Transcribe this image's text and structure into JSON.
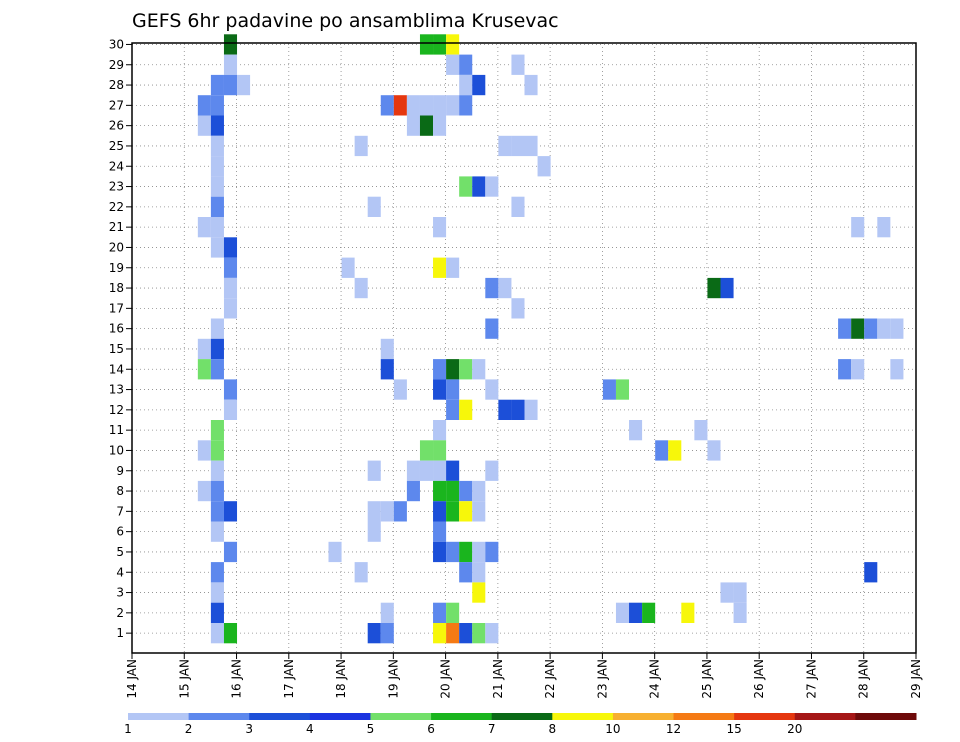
{
  "chart_data": {
    "type": "heatmap",
    "title": "GEFS 6hr padavine po ansamblima Krusevac",
    "xlabel": "",
    "ylabel": "",
    "x_ticks": [
      "14 JAN",
      "15 JAN",
      "16 JAN",
      "17 JAN",
      "18 JAN",
      "19 JAN",
      "20 JAN",
      "21 JAN",
      "22 JAN",
      "23 JAN",
      "24 JAN",
      "25 JAN",
      "26 JAN",
      "27 JAN",
      "28 JAN",
      "29 JAN"
    ],
    "y_ticks": [
      1,
      2,
      3,
      4,
      5,
      6,
      7,
      8,
      9,
      10,
      11,
      12,
      13,
      14,
      15,
      16,
      17,
      18,
      19,
      20,
      21,
      22,
      23,
      24,
      25,
      26,
      27,
      28,
      29,
      30
    ],
    "x_range_steps": [
      0,
      60
    ],
    "step_hours": 6,
    "grid": true,
    "legend_placement": "bottom",
    "legend": {
      "colors": [
        "#b3c6f5",
        "#5d88ed",
        "#1c4fd8",
        "#1b34e0",
        "#72e06a",
        "#1ab51e",
        "#0a6a16",
        "#f7f70a",
        "#f7b030",
        "#f57a14",
        "#e5370f",
        "#a51616",
        "#6e0a0a"
      ],
      "tick_labels": [
        "1",
        "2",
        "3",
        "4",
        "5",
        "6",
        "7",
        "8",
        "10",
        "12",
        "15",
        "20",
        ""
      ]
    },
    "cells": [
      {
        "member": 30,
        "step": [
          8
        ],
        "cls": 6
      },
      {
        "member": 30,
        "step": [
          23,
          24
        ],
        "cls": 5
      },
      {
        "member": 30,
        "step": [
          25
        ],
        "cls": 7
      },
      {
        "member": 29,
        "step": [
          8
        ],
        "cls": 0
      },
      {
        "member": 29,
        "step": [
          25
        ],
        "cls": 0
      },
      {
        "member": 29,
        "step": [
          26
        ],
        "cls": 1
      },
      {
        "member": 29,
        "step": [
          30
        ],
        "cls": 0
      },
      {
        "member": 28,
        "step": [
          7
        ],
        "cls": 1
      },
      {
        "member": 28,
        "step": [
          8
        ],
        "cls": 1
      },
      {
        "member": 28,
        "step": [
          9
        ],
        "cls": 0
      },
      {
        "member": 28,
        "step": [
          26
        ],
        "cls": 0
      },
      {
        "member": 28,
        "step": [
          27
        ],
        "cls": 2
      },
      {
        "member": 28,
        "step": [
          31
        ],
        "cls": 0
      },
      {
        "member": 27,
        "step": [
          6
        ],
        "cls": 1
      },
      {
        "member": 27,
        "step": [
          7
        ],
        "cls": 1
      },
      {
        "member": 27,
        "step": [
          20
        ],
        "cls": 1
      },
      {
        "member": 27,
        "step": [
          21
        ],
        "cls": 10
      },
      {
        "member": 27,
        "step": [
          22,
          25
        ],
        "cls": 0
      },
      {
        "member": 27,
        "step": [
          26
        ],
        "cls": 1
      },
      {
        "member": 26,
        "step": [
          6
        ],
        "cls": 0
      },
      {
        "member": 26,
        "step": [
          7
        ],
        "cls": 2
      },
      {
        "member": 26,
        "step": [
          22
        ],
        "cls": 0
      },
      {
        "member": 26,
        "step": [
          23
        ],
        "cls": 6
      },
      {
        "member": 26,
        "step": [
          24
        ],
        "cls": 0
      },
      {
        "member": 25,
        "step": [
          7
        ],
        "cls": 0
      },
      {
        "member": 25,
        "step": [
          18
        ],
        "cls": 0
      },
      {
        "member": 25,
        "step": [
          29,
          31
        ],
        "cls": 0
      },
      {
        "member": 24,
        "step": [
          7
        ],
        "cls": 0
      },
      {
        "member": 24,
        "step": [
          32
        ],
        "cls": 0
      },
      {
        "member": 23,
        "step": [
          7
        ],
        "cls": 0
      },
      {
        "member": 23,
        "step": [
          26
        ],
        "cls": 4
      },
      {
        "member": 23,
        "step": [
          27
        ],
        "cls": 2
      },
      {
        "member": 23,
        "step": [
          28
        ],
        "cls": 0
      },
      {
        "member": 22,
        "step": [
          7
        ],
        "cls": 1
      },
      {
        "member": 22,
        "step": [
          19
        ],
        "cls": 0
      },
      {
        "member": 22,
        "step": [
          30
        ],
        "cls": 0
      },
      {
        "member": 21,
        "step": [
          6,
          7
        ],
        "cls": 0
      },
      {
        "member": 21,
        "step": [
          24
        ],
        "cls": 0
      },
      {
        "member": 21,
        "step": [
          56
        ],
        "cls": 0
      },
      {
        "member": 21,
        "step": [
          58
        ],
        "cls": 0
      },
      {
        "member": 20,
        "step": [
          7
        ],
        "cls": 0
      },
      {
        "member": 20,
        "step": [
          8
        ],
        "cls": 2
      },
      {
        "member": 19,
        "step": [
          8
        ],
        "cls": 1
      },
      {
        "member": 19,
        "step": [
          17
        ],
        "cls": 0
      },
      {
        "member": 19,
        "step": [
          24
        ],
        "cls": 7
      },
      {
        "member": 19,
        "step": [
          25
        ],
        "cls": 0
      },
      {
        "member": 18,
        "step": [
          8
        ],
        "cls": 0
      },
      {
        "member": 18,
        "step": [
          18
        ],
        "cls": 0
      },
      {
        "member": 18,
        "step": [
          28
        ],
        "cls": 1
      },
      {
        "member": 18,
        "step": [
          29
        ],
        "cls": 0
      },
      {
        "member": 18,
        "step": [
          45
        ],
        "cls": 6
      },
      {
        "member": 18,
        "step": [
          46
        ],
        "cls": 2
      },
      {
        "member": 17,
        "step": [
          8
        ],
        "cls": 0
      },
      {
        "member": 17,
        "step": [
          30
        ],
        "cls": 0
      },
      {
        "member": 16,
        "step": [
          7
        ],
        "cls": 0
      },
      {
        "member": 16,
        "step": [
          28
        ],
        "cls": 1
      },
      {
        "member": 16,
        "step": [
          55
        ],
        "cls": 1
      },
      {
        "member": 16,
        "step": [
          56
        ],
        "cls": 6
      },
      {
        "member": 16,
        "step": [
          57
        ],
        "cls": 1
      },
      {
        "member": 16,
        "step": [
          58,
          59
        ],
        "cls": 0
      },
      {
        "member": 15,
        "step": [
          6
        ],
        "cls": 0
      },
      {
        "member": 15,
        "step": [
          7
        ],
        "cls": 2
      },
      {
        "member": 15,
        "step": [
          20
        ],
        "cls": 0
      },
      {
        "member": 14,
        "step": [
          6
        ],
        "cls": 4
      },
      {
        "member": 14,
        "step": [
          7
        ],
        "cls": 1
      },
      {
        "member": 14,
        "step": [
          20
        ],
        "cls": 2
      },
      {
        "member": 14,
        "step": [
          24
        ],
        "cls": 1
      },
      {
        "member": 14,
        "step": [
          25
        ],
        "cls": 6
      },
      {
        "member": 14,
        "step": [
          26
        ],
        "cls": 4
      },
      {
        "member": 14,
        "step": [
          27
        ],
        "cls": 0
      },
      {
        "member": 14,
        "step": [
          55
        ],
        "cls": 1
      },
      {
        "member": 14,
        "step": [
          56
        ],
        "cls": 0
      },
      {
        "member": 14,
        "step": [
          59
        ],
        "cls": 0
      },
      {
        "member": 13,
        "step": [
          8
        ],
        "cls": 1
      },
      {
        "member": 13,
        "step": [
          21
        ],
        "cls": 0
      },
      {
        "member": 13,
        "step": [
          24
        ],
        "cls": 2
      },
      {
        "member": 13,
        "step": [
          25
        ],
        "cls": 1
      },
      {
        "member": 13,
        "step": [
          28
        ],
        "cls": 0
      },
      {
        "member": 13,
        "step": [
          37
        ],
        "cls": 1
      },
      {
        "member": 13,
        "step": [
          38
        ],
        "cls": 4
      },
      {
        "member": 12,
        "step": [
          8
        ],
        "cls": 0
      },
      {
        "member": 12,
        "step": [
          25
        ],
        "cls": 1
      },
      {
        "member": 12,
        "step": [
          26
        ],
        "cls": 7
      },
      {
        "member": 12,
        "step": [
          29,
          30
        ],
        "cls": 2
      },
      {
        "member": 12,
        "step": [
          31
        ],
        "cls": 0
      },
      {
        "member": 11,
        "step": [
          7
        ],
        "cls": 4
      },
      {
        "member": 11,
        "step": [
          24
        ],
        "cls": 0
      },
      {
        "member": 11,
        "step": [
          39
        ],
        "cls": 0
      },
      {
        "member": 11,
        "step": [
          44
        ],
        "cls": 0
      },
      {
        "member": 10,
        "step": [
          6
        ],
        "cls": 0
      },
      {
        "member": 10,
        "step": [
          7
        ],
        "cls": 4
      },
      {
        "member": 10,
        "step": [
          23,
          24
        ],
        "cls": 4
      },
      {
        "member": 10,
        "step": [
          41
        ],
        "cls": 1
      },
      {
        "member": 10,
        "step": [
          42
        ],
        "cls": 7
      },
      {
        "member": 10,
        "step": [
          45
        ],
        "cls": 0
      },
      {
        "member": 9,
        "step": [
          7
        ],
        "cls": 0
      },
      {
        "member": 9,
        "step": [
          19
        ],
        "cls": 0
      },
      {
        "member": 9,
        "step": [
          22,
          24
        ],
        "cls": 0
      },
      {
        "member": 9,
        "step": [
          25
        ],
        "cls": 2
      },
      {
        "member": 9,
        "step": [
          28
        ],
        "cls": 0
      },
      {
        "member": 8,
        "step": [
          6
        ],
        "cls": 0
      },
      {
        "member": 8,
        "step": [
          7
        ],
        "cls": 1
      },
      {
        "member": 8,
        "step": [
          22
        ],
        "cls": 1
      },
      {
        "member": 8,
        "step": [
          24,
          25
        ],
        "cls": 5
      },
      {
        "member": 8,
        "step": [
          26
        ],
        "cls": 1
      },
      {
        "member": 8,
        "step": [
          27
        ],
        "cls": 0
      },
      {
        "member": 7,
        "step": [
          7
        ],
        "cls": 1
      },
      {
        "member": 7,
        "step": [
          8
        ],
        "cls": 2
      },
      {
        "member": 7,
        "step": [
          19,
          20
        ],
        "cls": 0
      },
      {
        "member": 7,
        "step": [
          21
        ],
        "cls": 1
      },
      {
        "member": 7,
        "step": [
          24
        ],
        "cls": 2
      },
      {
        "member": 7,
        "step": [
          25
        ],
        "cls": 5
      },
      {
        "member": 7,
        "step": [
          26
        ],
        "cls": 7
      },
      {
        "member": 7,
        "step": [
          27
        ],
        "cls": 0
      },
      {
        "member": 6,
        "step": [
          7
        ],
        "cls": 0
      },
      {
        "member": 6,
        "step": [
          19
        ],
        "cls": 0
      },
      {
        "member": 6,
        "step": [
          24
        ],
        "cls": 1
      },
      {
        "member": 5,
        "step": [
          8
        ],
        "cls": 1
      },
      {
        "member": 5,
        "step": [
          16
        ],
        "cls": 0
      },
      {
        "member": 5,
        "step": [
          24
        ],
        "cls": 2
      },
      {
        "member": 5,
        "step": [
          25
        ],
        "cls": 1
      },
      {
        "member": 5,
        "step": [
          26
        ],
        "cls": 5
      },
      {
        "member": 5,
        "step": [
          27
        ],
        "cls": 0
      },
      {
        "member": 5,
        "step": [
          28
        ],
        "cls": 1
      },
      {
        "member": 4,
        "step": [
          7
        ],
        "cls": 1
      },
      {
        "member": 4,
        "step": [
          18
        ],
        "cls": 0
      },
      {
        "member": 4,
        "step": [
          26
        ],
        "cls": 1
      },
      {
        "member": 4,
        "step": [
          27
        ],
        "cls": 0
      },
      {
        "member": 4,
        "step": [
          57
        ],
        "cls": 2
      },
      {
        "member": 3,
        "step": [
          7
        ],
        "cls": 0
      },
      {
        "member": 3,
        "step": [
          27
        ],
        "cls": 7
      },
      {
        "member": 3,
        "step": [
          46,
          47
        ],
        "cls": 0
      },
      {
        "member": 2,
        "step": [
          7
        ],
        "cls": 2
      },
      {
        "member": 2,
        "step": [
          20
        ],
        "cls": 0
      },
      {
        "member": 2,
        "step": [
          24
        ],
        "cls": 1
      },
      {
        "member": 2,
        "step": [
          25
        ],
        "cls": 4
      },
      {
        "member": 2,
        "step": [
          38
        ],
        "cls": 0
      },
      {
        "member": 2,
        "step": [
          39
        ],
        "cls": 2
      },
      {
        "member": 2,
        "step": [
          40
        ],
        "cls": 5
      },
      {
        "member": 2,
        "step": [
          43
        ],
        "cls": 7
      },
      {
        "member": 2,
        "step": [
          47
        ],
        "cls": 0
      },
      {
        "member": 1,
        "step": [
          7
        ],
        "cls": 0
      },
      {
        "member": 1,
        "step": [
          8
        ],
        "cls": 5
      },
      {
        "member": 1,
        "step": [
          19
        ],
        "cls": 2
      },
      {
        "member": 1,
        "step": [
          20
        ],
        "cls": 1
      },
      {
        "member": 1,
        "step": [
          24
        ],
        "cls": 7
      },
      {
        "member": 1,
        "step": [
          25
        ],
        "cls": 9
      },
      {
        "member": 1,
        "step": [
          26
        ],
        "cls": 2
      },
      {
        "member": 1,
        "step": [
          27
        ],
        "cls": 4
      },
      {
        "member": 1,
        "step": [
          28
        ],
        "cls": 0
      }
    ]
  }
}
